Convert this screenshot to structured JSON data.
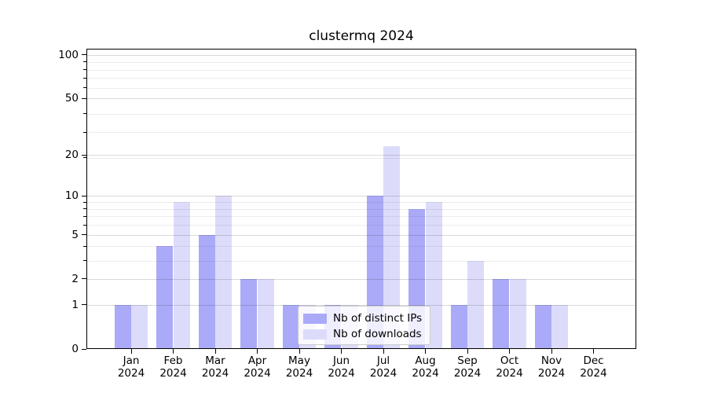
{
  "chart_data": {
    "type": "bar",
    "title": "clustermq 2024",
    "categories": [
      "Jan",
      "Feb",
      "Mar",
      "Apr",
      "May",
      "Jun",
      "Jul",
      "Aug",
      "Sep",
      "Oct",
      "Nov",
      "Dec"
    ],
    "year": "2024",
    "series": [
      {
        "name": "Nb of distinct IPs",
        "color": "#aaaaf8",
        "values": [
          1,
          4,
          5,
          2,
          1,
          1,
          10,
          8,
          1,
          2,
          1,
          0
        ]
      },
      {
        "name": "Nb of downloads",
        "color": "#dcdcfa",
        "values": [
          1,
          9,
          10,
          2,
          1,
          1,
          23,
          9,
          3,
          2,
          1,
          0
        ]
      }
    ],
    "yticks": [
      0,
      1,
      2,
      5,
      10,
      20,
      50,
      100
    ],
    "yscale": "log10(1+v)",
    "ylim": [
      0,
      110
    ],
    "xlabel": "",
    "ylabel": "",
    "grid": true,
    "legend_position": "lower center-left inside plot"
  }
}
